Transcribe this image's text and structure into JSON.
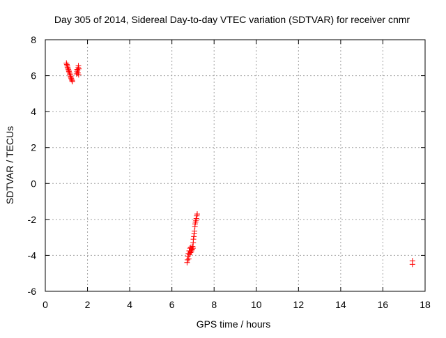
{
  "chart_data": {
    "type": "scatter",
    "title": "Day 305 of 2014, Sidereal Day-to-day VTEC variation (SDTVAR) for receiver cnmr",
    "xlabel": "GPS time / hours",
    "ylabel": "SDTVAR / TECUs",
    "xlim": [
      0,
      18
    ],
    "ylim": [
      -6,
      8
    ],
    "xticks": [
      0,
      2,
      4,
      6,
      8,
      10,
      12,
      14,
      16,
      18
    ],
    "yticks": [
      -6,
      -4,
      -2,
      0,
      2,
      4,
      6,
      8
    ],
    "grid": true,
    "marker": "+",
    "marker_color": "#ff0000",
    "series": [
      {
        "name": "SDTVAR",
        "points": [
          [
            1.0,
            6.7
          ],
          [
            1.02,
            6.62
          ],
          [
            1.04,
            6.55
          ],
          [
            1.05,
            6.48
          ],
          [
            1.07,
            6.42
          ],
          [
            1.09,
            6.36
          ],
          [
            1.11,
            6.3
          ],
          [
            1.12,
            6.24
          ],
          [
            1.14,
            6.17
          ],
          [
            1.16,
            6.1
          ],
          [
            1.18,
            6.04
          ],
          [
            1.2,
            5.97
          ],
          [
            1.21,
            5.9
          ],
          [
            1.23,
            5.84
          ],
          [
            1.25,
            5.78
          ],
          [
            1.27,
            5.72
          ],
          [
            1.28,
            5.67
          ],
          [
            1.48,
            6.1
          ],
          [
            1.5,
            6.22
          ],
          [
            1.51,
            6.35
          ],
          [
            1.53,
            6.3
          ],
          [
            1.55,
            6.15
          ],
          [
            1.56,
            6.45
          ],
          [
            1.57,
            6.55
          ],
          [
            1.58,
            6.05
          ],
          [
            1.59,
            6.38
          ],
          [
            6.72,
            -4.4
          ],
          [
            6.74,
            -4.25
          ],
          [
            6.76,
            -4.05
          ],
          [
            6.78,
            -3.9
          ],
          [
            6.8,
            -4.2
          ],
          [
            6.82,
            -3.75
          ],
          [
            6.84,
            -3.95
          ],
          [
            6.86,
            -3.6
          ],
          [
            6.88,
            -3.85
          ],
          [
            6.9,
            -3.55
          ],
          [
            6.92,
            -3.8
          ],
          [
            6.94,
            -3.65
          ],
          [
            6.96,
            -3.7
          ],
          [
            6.98,
            -3.5
          ],
          [
            7.0,
            -3.6
          ],
          [
            7.01,
            -3.3
          ],
          [
            7.02,
            -3.1
          ],
          [
            7.04,
            -2.95
          ],
          [
            7.06,
            -2.8
          ],
          [
            7.07,
            -2.65
          ],
          [
            7.09,
            -2.4
          ],
          [
            7.1,
            -2.25
          ],
          [
            7.12,
            -2.15
          ],
          [
            7.14,
            -2.05
          ],
          [
            7.16,
            -1.95
          ],
          [
            7.18,
            -1.8
          ],
          [
            7.2,
            -1.7
          ],
          [
            17.4,
            -4.3
          ],
          [
            17.4,
            -4.5
          ]
        ]
      }
    ],
    "colors": {
      "axis": "#000000",
      "grid": "#a0a0a0",
      "background": "#ffffff"
    }
  }
}
